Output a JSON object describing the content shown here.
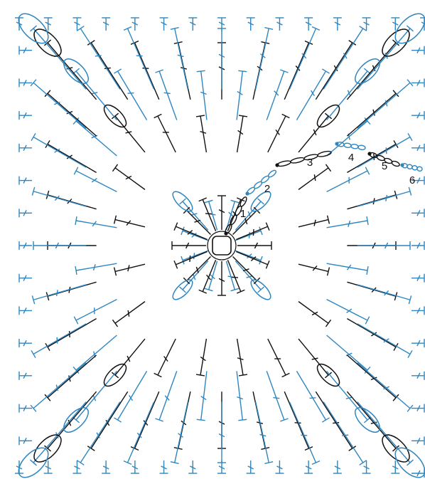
{
  "diagram": {
    "kind": "crochet-granny-square-chart",
    "colors": {
      "background": "#ffffff",
      "dark": "#111111",
      "blue": "#2e86c1"
    },
    "round_labels": [
      "1",
      "2",
      "3",
      "4",
      "5",
      "6"
    ],
    "round_colors": [
      "dark",
      "blue",
      "dark",
      "blue",
      "dark",
      "blue"
    ],
    "symbols": [
      "chain-stitch",
      "slip-stitch",
      "double-crochet",
      "treble-crochet",
      "magic-ring"
    ]
  }
}
